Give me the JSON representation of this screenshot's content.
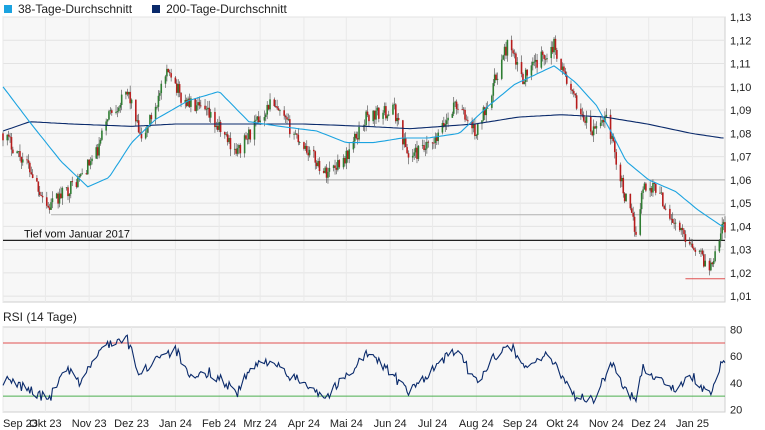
{
  "chart_data": {
    "type": "candlestick",
    "legend": [
      {
        "label": "38-Tage-Durchschnitt",
        "color": "#1ba3e0"
      },
      {
        "label": "200-Tage-Durchschnitt",
        "color": "#0a2a6b"
      }
    ],
    "price_panel": {
      "y_ticks": [
        "1,13",
        "1,12",
        "1,11",
        "1,10",
        "1,09",
        "1,08",
        "1,07",
        "1,06",
        "1,05",
        "1,04",
        "1,03",
        "1,02",
        "1,01"
      ],
      "ylim": [
        1.0075,
        1.13
      ],
      "horizontal_lines": [
        {
          "value": 1.06,
          "color": "#b0b0b0"
        },
        {
          "value": 1.045,
          "color": "#b0b0b0"
        },
        {
          "value": 1.034,
          "color": "#222222"
        },
        {
          "value": 1.0175,
          "color": "#e05050"
        }
      ],
      "annotation": "Tief vom Januar 2017",
      "colors": {
        "up": "#2e7d32",
        "down": "#b71c1c",
        "ma38": "#1ba3e0",
        "ma200": "#0a2a6b"
      },
      "close_keypoints": [
        [
          "2023-09-01",
          1.08
        ],
        [
          "2023-09-20",
          1.065
        ],
        [
          "2023-10-03",
          1.048
        ],
        [
          "2023-10-24",
          1.06
        ],
        [
          "2023-11-07",
          1.072
        ],
        [
          "2023-11-14",
          1.088
        ],
        [
          "2023-11-29",
          1.097
        ],
        [
          "2023-12-08",
          1.076
        ],
        [
          "2023-12-28",
          1.108
        ],
        [
          "2024-01-05",
          1.095
        ],
        [
          "2024-01-24",
          1.088
        ],
        [
          "2024-02-14",
          1.072
        ],
        [
          "2024-03-08",
          1.093
        ],
        [
          "2024-04-01",
          1.075
        ],
        [
          "2024-04-16",
          1.063
        ],
        [
          "2024-05-01",
          1.07
        ],
        [
          "2024-05-15",
          1.087
        ],
        [
          "2024-06-04",
          1.09
        ],
        [
          "2024-06-14",
          1.07
        ],
        [
          "2024-07-02",
          1.075
        ],
        [
          "2024-07-17",
          1.093
        ],
        [
          "2024-08-01",
          1.08
        ],
        [
          "2024-08-23",
          1.118
        ],
        [
          "2024-09-03",
          1.104
        ],
        [
          "2024-09-25",
          1.118
        ],
        [
          "2024-10-08",
          1.096
        ],
        [
          "2024-10-22",
          1.08
        ],
        [
          "2024-11-01",
          1.088
        ],
        [
          "2024-11-14",
          1.053
        ],
        [
          "2024-11-22",
          1.038
        ],
        [
          "2024-11-27",
          1.057
        ],
        [
          "2024-12-06",
          1.057
        ],
        [
          "2024-12-20",
          1.04
        ],
        [
          "2025-01-02",
          1.032
        ],
        [
          "2025-01-13",
          1.022
        ],
        [
          "2025-01-17",
          1.03
        ],
        [
          "2025-01-22",
          1.04
        ]
      ],
      "ma38_keypoints": [
        [
          "2023-09-01",
          1.1
        ],
        [
          "2023-09-21",
          1.084
        ],
        [
          "2023-10-12",
          1.068
        ],
        [
          "2023-10-31",
          1.057
        ],
        [
          "2023-11-15",
          1.061
        ],
        [
          "2023-12-01",
          1.076
        ],
        [
          "2023-12-18",
          1.086
        ],
        [
          "2024-01-10",
          1.094
        ],
        [
          "2024-02-01",
          1.098
        ],
        [
          "2024-02-22",
          1.085
        ],
        [
          "2024-03-15",
          1.083
        ],
        [
          "2024-04-10",
          1.081
        ],
        [
          "2024-05-01",
          1.076
        ],
        [
          "2024-05-20",
          1.076
        ],
        [
          "2024-06-10",
          1.078
        ],
        [
          "2024-06-28",
          1.078
        ],
        [
          "2024-07-20",
          1.08
        ],
        [
          "2024-08-10",
          1.092
        ],
        [
          "2024-08-28",
          1.101
        ],
        [
          "2024-09-25",
          1.109
        ],
        [
          "2024-10-10",
          1.102
        ],
        [
          "2024-10-25",
          1.092
        ],
        [
          "2024-11-05",
          1.08
        ],
        [
          "2024-11-15",
          1.068
        ],
        [
          "2024-12-01",
          1.06
        ],
        [
          "2024-12-20",
          1.055
        ],
        [
          "2025-01-05",
          1.047
        ],
        [
          "2025-01-22",
          1.04
        ]
      ],
      "ma200_keypoints": [
        [
          "2023-09-01",
          1.081
        ],
        [
          "2023-09-20",
          1.085
        ],
        [
          "2023-10-20",
          1.084
        ],
        [
          "2023-12-01",
          1.083
        ],
        [
          "2024-01-01",
          1.084
        ],
        [
          "2024-02-15",
          1.084
        ],
        [
          "2024-04-01",
          1.084
        ],
        [
          "2024-05-15",
          1.083
        ],
        [
          "2024-06-15",
          1.082
        ],
        [
          "2024-07-31",
          1.084
        ],
        [
          "2024-08-31",
          1.087
        ],
        [
          "2024-09-30",
          1.088
        ],
        [
          "2024-10-31",
          1.087
        ],
        [
          "2024-11-30",
          1.084
        ],
        [
          "2024-12-31",
          1.08
        ],
        [
          "2025-01-22",
          1.078
        ]
      ]
    },
    "rsi_panel": {
      "title": "RSI (14 Tage)",
      "y_ticks": [
        "80",
        "60",
        "40",
        "20"
      ],
      "ylim": [
        18,
        82
      ],
      "levels": [
        {
          "value": 70,
          "color": "#e05050"
        },
        {
          "value": 30,
          "color": "#4caf50"
        }
      ],
      "line_color": "#0a2a6b",
      "keypoints": [
        [
          "2023-09-01",
          42
        ],
        [
          "2023-09-18",
          36
        ],
        [
          "2023-10-03",
          27
        ],
        [
          "2023-10-16",
          50
        ],
        [
          "2023-10-25",
          40
        ],
        [
          "2023-11-03",
          55
        ],
        [
          "2023-11-14",
          70
        ],
        [
          "2023-11-28",
          72
        ],
        [
          "2023-12-07",
          45
        ],
        [
          "2023-12-21",
          62
        ],
        [
          "2024-01-02",
          64
        ],
        [
          "2024-01-11",
          42
        ],
        [
          "2024-01-26",
          48
        ],
        [
          "2024-02-14",
          33
        ],
        [
          "2024-02-23",
          50
        ],
        [
          "2024-03-08",
          58
        ],
        [
          "2024-03-20",
          45
        ],
        [
          "2024-04-03",
          40
        ],
        [
          "2024-04-16",
          29
        ],
        [
          "2024-04-30",
          44
        ],
        [
          "2024-05-15",
          62
        ],
        [
          "2024-05-29",
          52
        ],
        [
          "2024-06-14",
          32
        ],
        [
          "2024-06-26",
          45
        ],
        [
          "2024-07-17",
          65
        ],
        [
          "2024-08-01",
          41
        ],
        [
          "2024-08-23",
          72
        ],
        [
          "2024-09-04",
          52
        ],
        [
          "2024-09-18",
          60
        ],
        [
          "2024-09-26",
          54
        ],
        [
          "2024-10-10",
          30
        ],
        [
          "2024-10-23",
          26
        ],
        [
          "2024-11-05",
          56
        ],
        [
          "2024-11-14",
          33
        ],
        [
          "2024-11-22",
          30
        ],
        [
          "2024-11-27",
          52
        ],
        [
          "2024-12-06",
          44
        ],
        [
          "2024-12-20",
          36
        ],
        [
          "2025-01-02",
          44
        ],
        [
          "2025-01-13",
          30
        ],
        [
          "2025-01-17",
          41
        ],
        [
          "2025-01-22",
          55
        ]
      ]
    },
    "x_axis": {
      "labels": [
        "Sep 23",
        "Okt 23",
        "Nov 23",
        "Dez 23",
        "Jan 24",
        "Feb 24",
        "Mrz 24",
        "Apr 24",
        "Mai 24",
        "Jun 24",
        "Jul 24",
        "Aug 24",
        "Sep 24",
        "Okt 24",
        "Nov 24",
        "Dez 24",
        "Jan 25"
      ],
      "label_dates": [
        "2023-09-01",
        "2023-10-01",
        "2023-11-01",
        "2023-12-01",
        "2024-01-01",
        "2024-02-01",
        "2024-03-01",
        "2024-04-01",
        "2024-05-01",
        "2024-06-01",
        "2024-07-01",
        "2024-08-01",
        "2024-09-01",
        "2024-10-01",
        "2024-11-01",
        "2024-12-01",
        "2025-01-01"
      ],
      "range": [
        "2023-09-01",
        "2025-01-24"
      ]
    }
  }
}
